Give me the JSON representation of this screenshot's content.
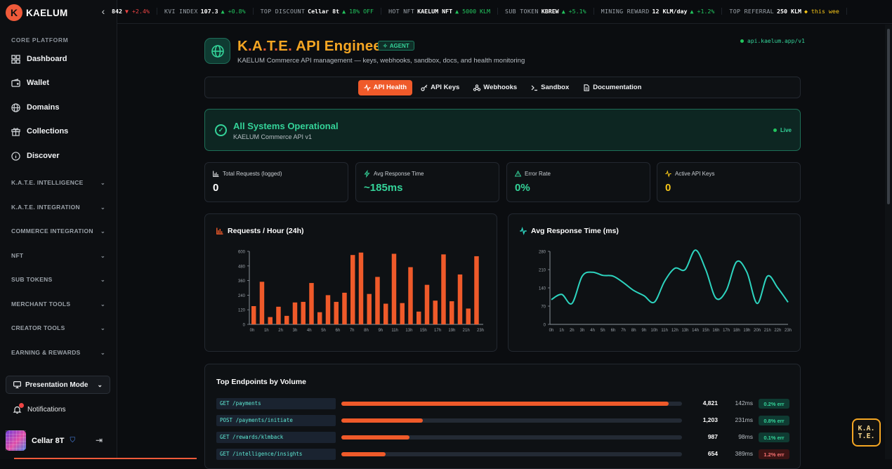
{
  "brand": {
    "logo_letter": "K",
    "name": "KAELUM",
    "collapse_icon": "chevron-left-icon"
  },
  "sidebar": {
    "section_label": "CORE PLATFORM",
    "items": [
      {
        "label": "Dashboard",
        "icon": "grid-icon"
      },
      {
        "label": "Wallet",
        "icon": "wallet-icon"
      },
      {
        "label": "Domains",
        "icon": "globe-icon"
      },
      {
        "label": "Collections",
        "icon": "gift-icon"
      },
      {
        "label": "Discover",
        "icon": "compass-icon"
      }
    ],
    "groups": [
      "K.A.T.E. INTELLIGENCE",
      "K.A.T.E. INTEGRATION",
      "COMMERCE INTEGRATION",
      "NFT",
      "SUB TOKENS",
      "MERCHANT TOOLS",
      "CREATOR TOOLS",
      "EARNING & REWARDS"
    ],
    "presentation_mode": "Presentation Mode",
    "notifications": "Notifications",
    "user_name": "Cellar 8T"
  },
  "ticker": [
    {
      "label": "",
      "value": "842",
      "change": "▼ +2.4%",
      "dir": "down"
    },
    {
      "label": "KVI INDEX",
      "value": "107.3",
      "change": "▲ +0.8%",
      "dir": "up"
    },
    {
      "label": "TOP DISCOUNT",
      "value": "Cellar 8t",
      "change": "▲ 18% OFF",
      "dir": "up"
    },
    {
      "label": "HOT NFT",
      "value": "KAELUM NFT",
      "change": "▲ 5000 KLM",
      "dir": "up"
    },
    {
      "label": "SUB TOKEN",
      "value": "KBREW",
      "change": "▲ +5.1%",
      "dir": "up"
    },
    {
      "label": "MINING REWARD",
      "value": "12 KLM/day",
      "change": "▲ +1.2%",
      "dir": "up"
    },
    {
      "label": "TOP REFERRAL",
      "value": "250 KLM",
      "change": "◆ this wee",
      "dir": "gold"
    }
  ],
  "header": {
    "title_parts": [
      "K",
      ".",
      "A",
      ".",
      "T",
      ".",
      "E",
      ".",
      " API Engineer"
    ],
    "badge": "AGENT",
    "subtitle": "KAELUM Commerce API management — keys, webhooks, sandbox, docs, and health monitoring",
    "api_url": "api.kaelum.app/v1"
  },
  "tabs": [
    {
      "label": "API Health",
      "icon": "activity-icon",
      "active": true
    },
    {
      "label": "API Keys",
      "icon": "key-icon",
      "active": false
    },
    {
      "label": "Webhooks",
      "icon": "webhook-icon",
      "active": false
    },
    {
      "label": "Sandbox",
      "icon": "terminal-icon",
      "active": false
    },
    {
      "label": "Documentation",
      "icon": "document-icon",
      "active": false
    }
  ],
  "status": {
    "title": "All Systems Operational",
    "subtitle": "KAELUM Commerce API v1",
    "live": "Live"
  },
  "stats": [
    {
      "label": "Total Requests (logged)",
      "value": "0",
      "icon": "bar-chart-icon",
      "color": "#ffffff"
    },
    {
      "label": "Avg Response Time",
      "value": "~185ms",
      "icon": "zap-icon",
      "color": "#34d399"
    },
    {
      "label": "Error Rate",
      "value": "0%",
      "icon": "alert-triangle-icon",
      "color": "#34d399"
    },
    {
      "label": "Active API Keys",
      "value": "0",
      "icon": "pulse-icon",
      "color": "#f5c518"
    }
  ],
  "chart_data": [
    {
      "type": "bar",
      "title": "Requests / Hour (24h)",
      "x_tick_labels": [
        "0h",
        "1h",
        "2h",
        "3h",
        "4h",
        "5h",
        "6h",
        "7h",
        "8h",
        "9h",
        "11h",
        "13h",
        "15h",
        "17h",
        "19h",
        "21h",
        "23h"
      ],
      "y_ticks": [
        0,
        120,
        240,
        360,
        480,
        600
      ],
      "ylim": [
        0,
        600
      ],
      "color": "#ef5a2a",
      "values": [
        150,
        350,
        60,
        145,
        70,
        180,
        185,
        340,
        100,
        240,
        185,
        260,
        570,
        590,
        250,
        390,
        170,
        580,
        175,
        470,
        105,
        325,
        195,
        575,
        190,
        410,
        130,
        560
      ],
      "legend": false
    },
    {
      "type": "line",
      "title": "Avg Response Time (ms)",
      "x_tick_labels": [
        "0h",
        "1h",
        "2h",
        "3h",
        "4h",
        "5h",
        "6h",
        "7h",
        "8h",
        "9h",
        "10h",
        "11h",
        "12h",
        "13h",
        "14h",
        "15h",
        "16h",
        "17h",
        "18h",
        "19h",
        "20h",
        "21h",
        "22h",
        "23h"
      ],
      "y_ticks": [
        0,
        70,
        140,
        210,
        280
      ],
      "ylim": [
        0,
        280
      ],
      "color": "#2dd4bf",
      "values": [
        95,
        115,
        80,
        185,
        200,
        188,
        185,
        160,
        130,
        110,
        85,
        165,
        215,
        210,
        285,
        210,
        100,
        130,
        240,
        200,
        80,
        185,
        140,
        85
      ],
      "legend": false
    }
  ],
  "endpoints": {
    "title": "Top Endpoints by Volume",
    "rows": [
      {
        "path": "GET /payments",
        "share": 0.96,
        "count": "4,821",
        "latency": "142ms",
        "err": "0.2% err",
        "status": "ok"
      },
      {
        "path": "POST /payments/initiate",
        "share": 0.24,
        "count": "1,203",
        "latency": "231ms",
        "err": "0.8% err",
        "status": "ok"
      },
      {
        "path": "GET /rewards/klmback",
        "share": 0.2,
        "count": "987",
        "latency": "98ms",
        "err": "0.1% err",
        "status": "ok"
      },
      {
        "path": "GET /intelligence/insights",
        "share": 0.13,
        "count": "654",
        "latency": "389ms",
        "err": "1.2% err",
        "status": "bad"
      }
    ]
  },
  "widget": {
    "line1": "K.A.",
    "line2": "T.E."
  }
}
